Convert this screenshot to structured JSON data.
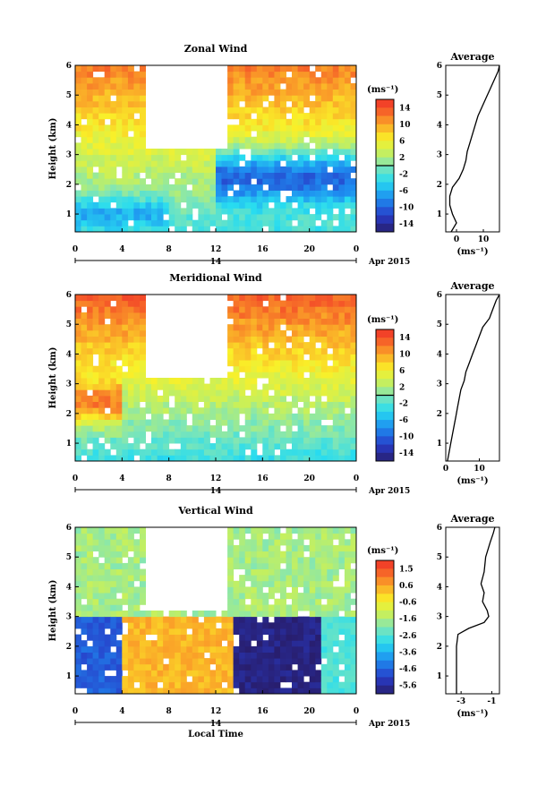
{
  "chart_data": [
    {
      "type": "heatmap",
      "title": "Zonal Wind",
      "xlabel": "",
      "ylabel": "Height (km)",
      "x_ticks": [
        "0",
        "4",
        "8",
        "12",
        "16",
        "20",
        "0"
      ],
      "xlim": [
        0,
        24
      ],
      "y_ticks": [
        "1",
        "2",
        "3",
        "4",
        "5",
        "6"
      ],
      "ylim": [
        0.4,
        6.0
      ],
      "date_marker": "14",
      "date_label": "Apr 2015",
      "colorbar": {
        "unit_label": "(ms⁻¹)",
        "tick_labels": [
          "14",
          "10",
          "6",
          "2",
          "-2",
          "-6",
          "-10",
          "-14"
        ],
        "range": [
          -16,
          16
        ],
        "zero_line_level": 0
      },
      "field": {
        "base": 8,
        "gradient_per_km": 2.6,
        "shear_midpoint_km": 4.5,
        "low_level_jet": [
          {
            "t0": 12,
            "t1": 24,
            "z_center": 2.2,
            "z_width": 0.9,
            "value": -10
          },
          {
            "t0": 0,
            "t1": 8,
            "z_center": 1.0,
            "z_width": 0.5,
            "value": -6
          }
        ]
      },
      "profile": {
        "title": "Average",
        "xlabel": "(ms⁻¹)",
        "x_ticks": [
          "0",
          "10"
        ],
        "xlim": [
          -4,
          16
        ],
        "y_ticks": [
          "1",
          "2",
          "3",
          "4",
          "5",
          "6"
        ],
        "heights": [
          0.4,
          0.7,
          1.0,
          1.3,
          1.6,
          1.9,
          2.2,
          2.5,
          2.8,
          3.1,
          3.4,
          3.7,
          4.0,
          4.3,
          4.6,
          4.9,
          5.2,
          5.5,
          5.8,
          6.0
        ],
        "values": [
          -2,
          0,
          -1.5,
          -2.5,
          -2.5,
          -1.5,
          1,
          2.5,
          3.5,
          4,
          5,
          6,
          7,
          8,
          9.5,
          11,
          12.5,
          14,
          15.5,
          16
        ]
      }
    },
    {
      "type": "heatmap",
      "title": "Meridional Wind",
      "xlabel": "",
      "ylabel": "Height (km)",
      "x_ticks": [
        "0",
        "4",
        "8",
        "12",
        "16",
        "20",
        "0"
      ],
      "xlim": [
        0,
        24
      ],
      "y_ticks": [
        "1",
        "2",
        "3",
        "4",
        "5",
        "6"
      ],
      "ylim": [
        0.4,
        6.0
      ],
      "date_marker": "14",
      "date_label": "Apr 2015",
      "colorbar": {
        "unit_label": "(ms⁻¹)",
        "tick_labels": [
          "14",
          "10",
          "6",
          "2",
          "-2",
          "-6",
          "-10",
          "-14"
        ],
        "range": [
          -16,
          16
        ],
        "zero_line_level": 0
      },
      "field": {
        "base": 6,
        "gradient_per_km": 3.0,
        "shear_midpoint_km": 3.5,
        "low_level_jet": [
          {
            "t0": 0,
            "t1": 4,
            "z_center": 2.4,
            "z_width": 0.7,
            "value": 12
          }
        ]
      },
      "profile": {
        "title": "Average",
        "xlabel": "(ms⁻¹)",
        "x_ticks": [
          "0",
          "10"
        ],
        "xlim": [
          0,
          16
        ],
        "y_ticks": [
          "1",
          "2",
          "3",
          "4",
          "5",
          "6"
        ],
        "heights": [
          0.4,
          0.7,
          1.0,
          1.3,
          1.6,
          1.9,
          2.2,
          2.5,
          2.8,
          3.1,
          3.4,
          3.7,
          4.0,
          4.3,
          4.6,
          4.9,
          5.2,
          5.5,
          5.8,
          6.0
        ],
        "values": [
          0.5,
          1,
          1.5,
          2,
          2.5,
          3,
          3.5,
          4,
          4.5,
          5.5,
          6,
          7,
          8,
          9,
          10,
          11,
          13,
          14,
          15,
          16
        ]
      }
    },
    {
      "type": "heatmap",
      "title": "Vertical Wind",
      "xlabel": "Local Time",
      "ylabel": "Height (km)",
      "x_ticks": [
        "0",
        "4",
        "8",
        "12",
        "16",
        "20",
        "0"
      ],
      "xlim": [
        0,
        24
      ],
      "y_ticks": [
        "1",
        "2",
        "3",
        "4",
        "5",
        "6"
      ],
      "ylim": [
        0.4,
        6.0
      ],
      "date_marker": "14",
      "date_label": "Apr 2015",
      "colorbar": {
        "unit_label": "(ms⁻¹)",
        "tick_labels": [
          "1.5",
          "0.6",
          "-0.6",
          "-1.6",
          "-2.6",
          "-3.6",
          "-4.6",
          "-5.6"
        ],
        "range": [
          -6,
          2
        ],
        "zero_line_level": null
      },
      "field": {
        "upper_value": -1.6,
        "lower_boundary_km": 3.0,
        "lower_segments": [
          {
            "t0": 0,
            "t1": 4,
            "value": -4.6
          },
          {
            "t0": 4,
            "t1": 13.5,
            "value": 0.3
          },
          {
            "t0": 13.5,
            "t1": 21,
            "value": -5.8
          },
          {
            "t0": 21,
            "t1": 24,
            "value": -2.6
          }
        ]
      },
      "profile": {
        "title": "Average",
        "xlabel": "(ms⁻¹)",
        "x_ticks": [
          "-3",
          "-1"
        ],
        "xlim": [
          -4,
          -0.5
        ],
        "y_ticks": [
          "1",
          "2",
          "3",
          "4",
          "5",
          "6"
        ],
        "heights": [
          0.4,
          0.8,
          1.2,
          1.6,
          2.0,
          2.4,
          2.6,
          2.8,
          3.0,
          3.2,
          3.5,
          3.8,
          4.1,
          4.5,
          5.0,
          5.5,
          5.8,
          6.0
        ],
        "values": [
          -3.3,
          -3.3,
          -3.3,
          -3.3,
          -3.3,
          -3.2,
          -2.5,
          -1.5,
          -1.2,
          -1.3,
          -1.6,
          -1.5,
          -1.7,
          -1.5,
          -1.4,
          -1.1,
          -0.9,
          -0.8
        ]
      }
    }
  ]
}
